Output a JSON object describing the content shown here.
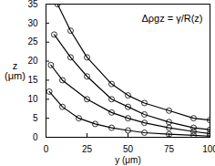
{
  "chart_data": {
    "type": "scatter",
    "x_label": "y (μm)",
    "y_label": "z (μm)",
    "annotation": "Δρgz = γ/R(z)",
    "xlim": [
      0,
      100
    ],
    "xticks": [
      0,
      25,
      50,
      75,
      100
    ],
    "ylim": [
      0,
      35
    ],
    "yticks": [
      0,
      5,
      10,
      15,
      20,
      25,
      30,
      35
    ],
    "grid": false,
    "series": [
      {
        "color": "#000000",
        "marker": "circle",
        "line_style": "solid",
        "x": [
          7,
          15,
          25,
          40,
          50,
          60,
          75,
          90,
          100
        ],
        "values": [
          35,
          28,
          21,
          14,
          11,
          9,
          7,
          5,
          4.5
        ]
      },
      {
        "color": "#000000",
        "marker": "circle",
        "line_style": "solid",
        "x": [
          5,
          15,
          25,
          40,
          50,
          60,
          75,
          90,
          100
        ],
        "values": [
          27,
          21,
          16,
          10,
          8,
          6,
          4,
          2.5,
          2
        ]
      },
      {
        "color": "#000000",
        "marker": "circle",
        "line_style": "solid",
        "x": [
          3,
          10,
          25,
          40,
          50,
          60,
          75,
          90,
          100
        ],
        "values": [
          19,
          15,
          10,
          6.5,
          5,
          3.8,
          2.5,
          1.5,
          1
        ]
      },
      {
        "color": "#000000",
        "marker": "circle",
        "line_style": "solid",
        "x": [
          2,
          10,
          20,
          30,
          40,
          50,
          60,
          75,
          90,
          100
        ],
        "values": [
          12,
          8,
          5,
          3.5,
          2.5,
          1.8,
          1.2,
          0.8,
          0.5,
          0.3
        ]
      }
    ]
  }
}
